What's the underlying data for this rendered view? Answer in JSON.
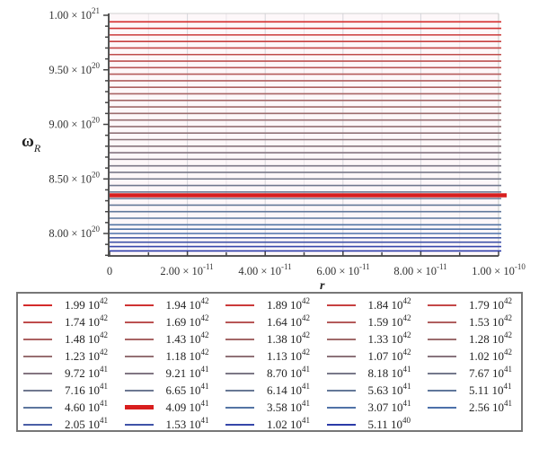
{
  "chart_data": {
    "type": "line",
    "title": "",
    "xlabel": "r",
    "ylabel": "ω_R",
    "xlim": [
      0,
      1e-10
    ],
    "ylim": [
      7.8e+20,
      1e+21
    ],
    "grid": true,
    "legend_position": "bottom",
    "x_ticks": [
      {
        "value": 0,
        "label": "0",
        "mant": "0",
        "exp": ""
      },
      {
        "value": 2e-11,
        "label": "2.00 × 10^-11",
        "mant": "2.00 × 10",
        "exp": "-11"
      },
      {
        "value": 4e-11,
        "label": "4.00 × 10^-11",
        "mant": "4.00 × 10",
        "exp": "-11"
      },
      {
        "value": 6e-11,
        "label": "6.00 × 10^-11",
        "mant": "6.00 × 10",
        "exp": "-11"
      },
      {
        "value": 8e-11,
        "label": "8.00 × 10^-11",
        "mant": "8.00 × 10",
        "exp": "-11"
      },
      {
        "value": 1e-10,
        "label": "1.00 × 10^-10",
        "mant": "1.00 × 10",
        "exp": "-10"
      }
    ],
    "y_ticks": [
      {
        "value": 1e+21,
        "label": "1.00 × 10^21",
        "mant": "1.00 × 10",
        "exp": "21"
      },
      {
        "value": 9.5e+20,
        "label": "9.50 × 10^20",
        "mant": "9.50 × 10",
        "exp": "20"
      },
      {
        "value": 9e+20,
        "label": "9.00 × 10^20",
        "mant": "9.00 × 10",
        "exp": "20"
      },
      {
        "value": 8.5e+20,
        "label": "8.50 × 10^20",
        "mant": "8.50 × 10",
        "exp": "20"
      },
      {
        "value": 8e+20,
        "label": "8.00 × 10^20",
        "mant": "8.00 × 10",
        "exp": "20"
      }
    ],
    "series": [
      {
        "name": "1.99 10^42",
        "mant": "1.99 10",
        "exp": "42",
        "color": "#d42a2a",
        "y": 9.94e+20
      },
      {
        "name": "1.94 10^42",
        "mant": "1.94 10",
        "exp": "42",
        "color": "#cf3232",
        "y": 9.88e+20
      },
      {
        "name": "1.89 10^42",
        "mant": "1.89 10",
        "exp": "42",
        "color": "#cb3a3a",
        "y": 9.82e+20
      },
      {
        "name": "1.84 10^42",
        "mant": "1.84 10",
        "exp": "42",
        "color": "#c74040",
        "y": 9.76e+20
      },
      {
        "name": "1.79 10^42",
        "mant": "1.79 10",
        "exp": "42",
        "color": "#c44747",
        "y": 9.7e+20
      },
      {
        "name": "1.74 10^42",
        "mant": "1.74 10",
        "exp": "42",
        "color": "#bf4c4c",
        "y": 9.64e+20
      },
      {
        "name": "1.69 10^42",
        "mant": "1.69 10",
        "exp": "42",
        "color": "#bb5151",
        "y": 9.58e+20
      },
      {
        "name": "1.64 10^42",
        "mant": "1.64 10",
        "exp": "42",
        "color": "#b85656",
        "y": 9.52e+20
      },
      {
        "name": "1.59 10^42",
        "mant": "1.59 10",
        "exp": "42",
        "color": "#b45a5a",
        "y": 9.46e+20
      },
      {
        "name": "1.53 10^42",
        "mant": "1.53 10",
        "exp": "42",
        "color": "#b05e5e",
        "y": 9.4e+20
      },
      {
        "name": "1.48 10^42",
        "mant": "1.48 10",
        "exp": "42",
        "color": "#ac6161",
        "y": 9.34e+20
      },
      {
        "name": "1.43 10^42",
        "mant": "1.43 10",
        "exp": "42",
        "color": "#a86464",
        "y": 9.28e+20
      },
      {
        "name": "1.38 10^42",
        "mant": "1.38 10",
        "exp": "42",
        "color": "#a46767",
        "y": 9.22e+20
      },
      {
        "name": "1.33 10^42",
        "mant": "1.33 10",
        "exp": "42",
        "color": "#a06a6a",
        "y": 9.16e+20
      },
      {
        "name": "1.28 10^42",
        "mant": "1.28 10",
        "exp": "42",
        "color": "#9c6c6e",
        "y": 9.1e+20
      },
      {
        "name": "1.23 10^42",
        "mant": "1.23 10",
        "exp": "42",
        "color": "#986e71",
        "y": 9.04e+20
      },
      {
        "name": "1.18 10^42",
        "mant": "1.18 10",
        "exp": "42",
        "color": "#947074",
        "y": 8.98e+20
      },
      {
        "name": "1.13 10^42",
        "mant": "1.13 10",
        "exp": "42",
        "color": "#907277",
        "y": 8.92e+20
      },
      {
        "name": "1.07 10^42",
        "mant": "1.07 10",
        "exp": "42",
        "color": "#8c737a",
        "y": 8.86e+20
      },
      {
        "name": "1.02 10^42",
        "mant": "1.02 10",
        "exp": "42",
        "color": "#88747d",
        "y": 8.8e+20
      },
      {
        "name": "9.72 10^41",
        "mant": "9.72 10",
        "exp": "41",
        "color": "#847580",
        "y": 8.74e+20
      },
      {
        "name": "9.21 10^41",
        "mant": "9.21 10",
        "exp": "41",
        "color": "#807683",
        "y": 8.68e+20
      },
      {
        "name": "8.70 10^41",
        "mant": "8.70 10",
        "exp": "41",
        "color": "#7c7786",
        "y": 8.62e+20
      },
      {
        "name": "8.18 10^41",
        "mant": "8.18 10",
        "exp": "41",
        "color": "#787889",
        "y": 8.56e+20
      },
      {
        "name": "7.67 10^41",
        "mant": "7.67 10",
        "exp": "41",
        "color": "#74788c",
        "y": 8.5e+20
      },
      {
        "name": "7.16 10^41",
        "mant": "7.16 10",
        "exp": "41",
        "color": "#70788f",
        "y": 8.44e+20
      },
      {
        "name": "6.65 10^41",
        "mant": "6.65 10",
        "exp": "41",
        "color": "#6c7892",
        "y": 8.38e+20
      },
      {
        "name": "6.14 10^41",
        "mant": "6.14 10",
        "exp": "41",
        "color": "#687895",
        "y": 8.32e+20
      },
      {
        "name": "5.63 10^41",
        "mant": "5.63 10",
        "exp": "41",
        "color": "#647898",
        "y": 8.26e+20
      },
      {
        "name": "5.11 10^41",
        "mant": "5.11 10",
        "exp": "41",
        "color": "#60779b",
        "y": 8.2e+20
      },
      {
        "name": "4.60 10^41",
        "mant": "4.60 10",
        "exp": "41",
        "color": "#5c769e",
        "y": 8.14e+20
      },
      {
        "name": "4.09 10^41",
        "mant": "4.09 10",
        "exp": "41",
        "color": "#d81e1e",
        "y": 8.35e+20,
        "highlight": true
      },
      {
        "name": "3.58 10^41",
        "mant": "3.58 10",
        "exp": "41",
        "color": "#5474a4",
        "y": 8.08e+20
      },
      {
        "name": "3.07 10^41",
        "mant": "3.07 10",
        "exp": "41",
        "color": "#5072a7",
        "y": 8.04e+20
      },
      {
        "name": "2.56 10^41",
        "mant": "2.56 10",
        "exp": "41",
        "color": "#4c70aa",
        "y": 8e+20
      },
      {
        "name": "2.05 10^41",
        "mant": "2.05 10",
        "exp": "41",
        "color": "#4a5ea6",
        "y": 7.96e+20
      },
      {
        "name": "1.53 10^41",
        "mant": "1.53 10",
        "exp": "41",
        "color": "#3f52a8",
        "y": 7.92e+20
      },
      {
        "name": "1.02 10^41",
        "mant": "1.02 10",
        "exp": "41",
        "color": "#3646aa",
        "y": 7.88e+20
      },
      {
        "name": "5.11 10^40",
        "mant": "5.11 10",
        "exp": "40",
        "color": "#2b3aa8",
        "y": 7.84e+20
      }
    ]
  },
  "axes": {
    "y_title": "ω",
    "y_title_sub": "R",
    "x_title": "r"
  }
}
